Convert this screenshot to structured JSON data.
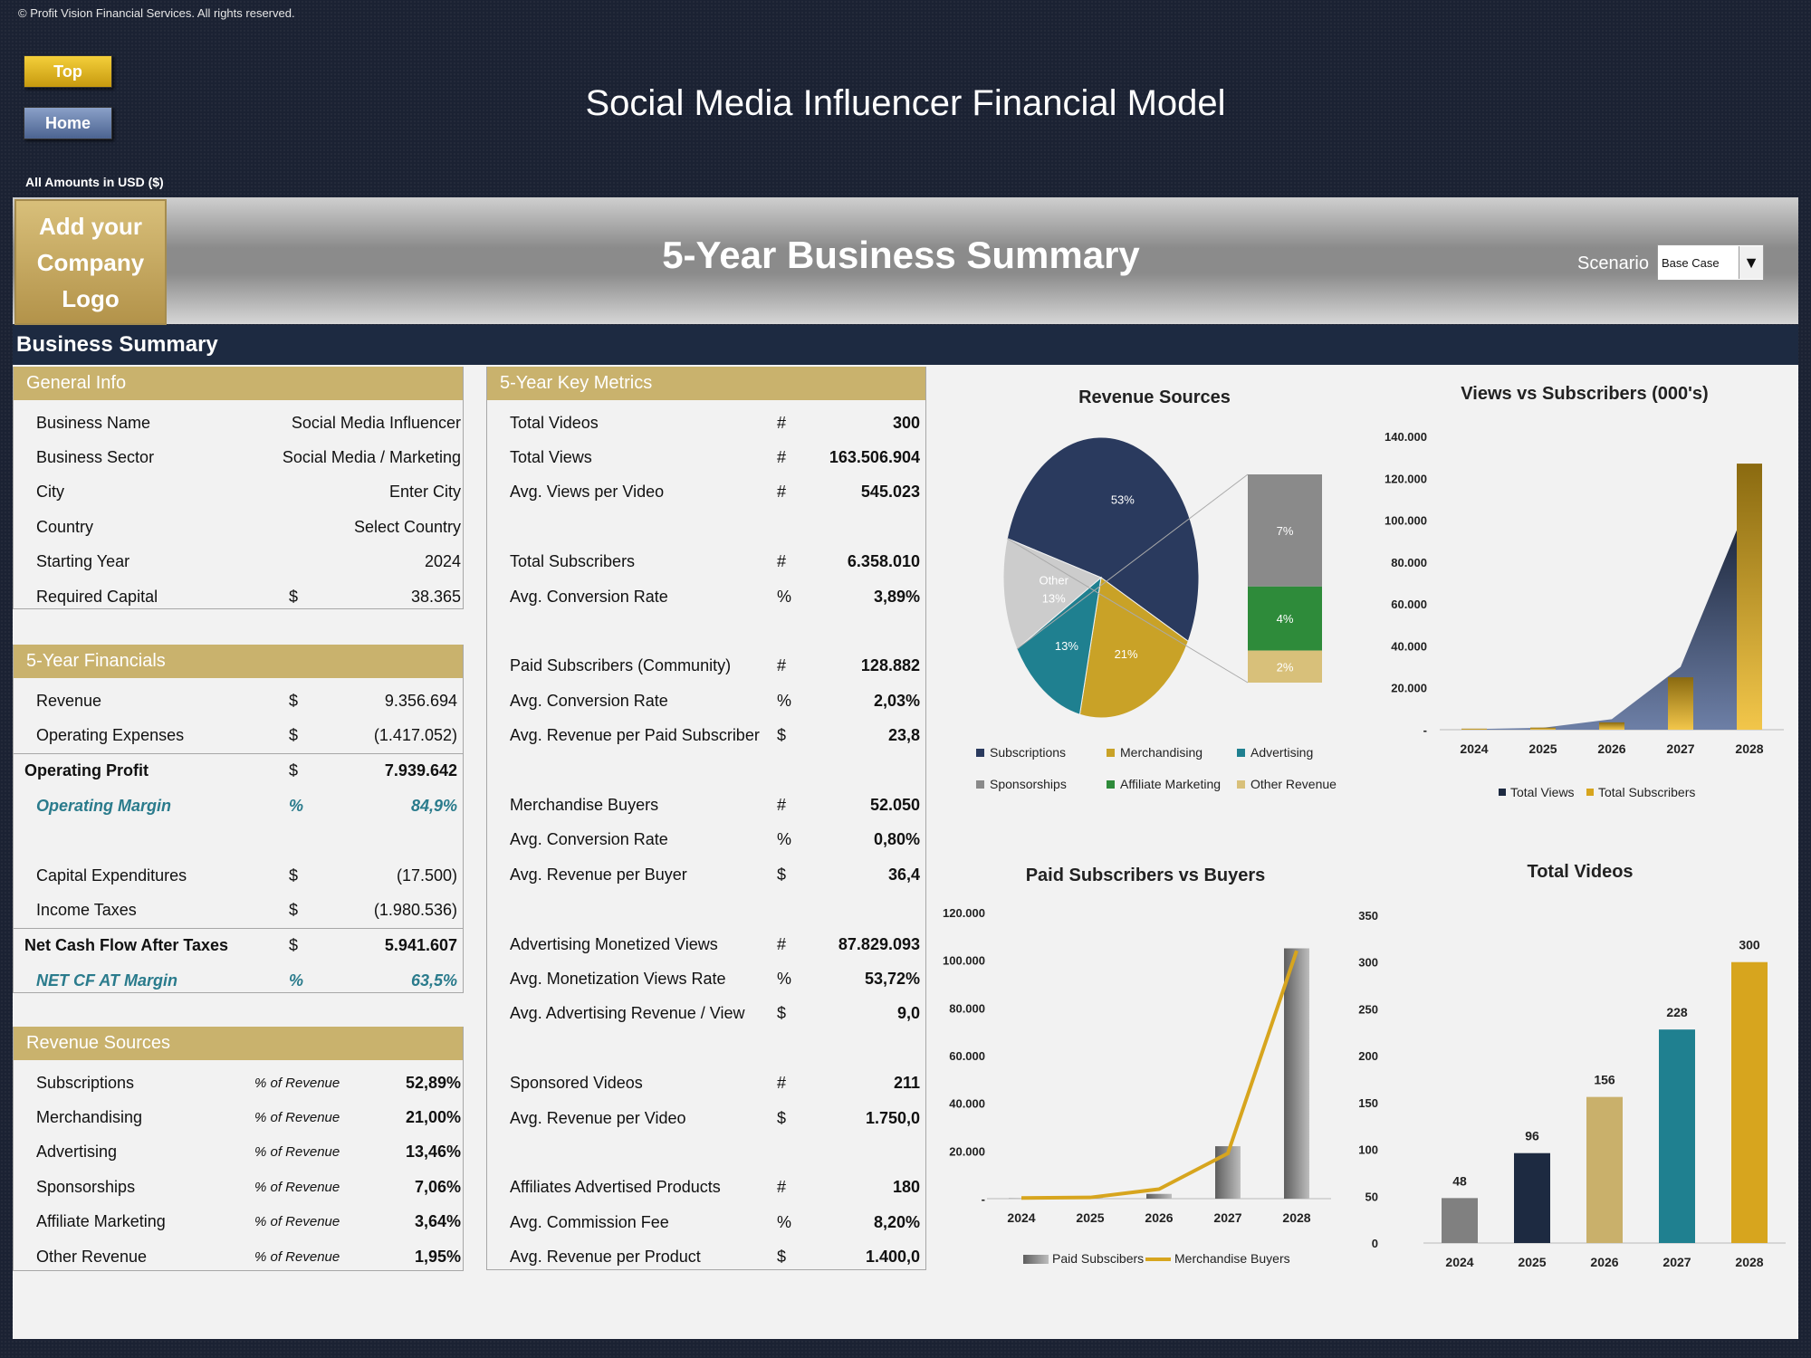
{
  "header": {
    "copyright": "© Profit Vision Financial Services. All rights reserved.",
    "top_button": "Top",
    "home_button": "Home",
    "title": "Social Media Influencer Financial Model",
    "amounts": "All Amounts in  USD ($)"
  },
  "banner": {
    "logo_line1": "Add your",
    "logo_line2": "Company Logo",
    "title": "5-Year Business Summary",
    "scenario_label": "Scenario",
    "scenario_value": "Base Case"
  },
  "section_title": "Business Summary",
  "general_info": {
    "title": "General Info",
    "rows": [
      {
        "label": "Business Name",
        "unit": "",
        "value": "Social Media Influencer"
      },
      {
        "label": "Business Sector",
        "unit": "",
        "value": "Social Media / Marketing"
      },
      {
        "label": "City",
        "unit": "",
        "value": "Enter City"
      },
      {
        "label": "Country",
        "unit": "",
        "value": "Select Country"
      },
      {
        "label": "Starting Year",
        "unit": "",
        "value": "2024"
      },
      {
        "label": "Required Capital",
        "unit": "$",
        "value": "38.365"
      }
    ]
  },
  "financials": {
    "title": "5-Year Financials",
    "rows": [
      {
        "label": "Revenue",
        "unit": "$",
        "value": "9.356.694"
      },
      {
        "label": "Operating Expenses",
        "unit": "$",
        "value": "(1.417.052)"
      },
      {
        "label": "Operating Profit",
        "unit": "$",
        "value": "7.939.642"
      },
      {
        "label": "Operating Margin",
        "unit": "%",
        "value": "84,9%"
      },
      {
        "label": "Capital Expenditures",
        "unit": "$",
        "value": "(17.500)"
      },
      {
        "label": "Income Taxes",
        "unit": "$",
        "value": "(1.980.536)"
      },
      {
        "label": "Net Cash Flow After Taxes",
        "unit": "$",
        "value": "5.941.607"
      },
      {
        "label": "NET CF AT Margin",
        "unit": "%",
        "value": "63,5%"
      }
    ]
  },
  "revenue_sources": {
    "title": "Revenue Sources",
    "rows": [
      {
        "label": "Subscriptions",
        "unit": "% of Revenue",
        "value": "52,89%"
      },
      {
        "label": "Merchandising",
        "unit": "% of Revenue",
        "value": "21,00%"
      },
      {
        "label": "Advertising",
        "unit": "% of Revenue",
        "value": "13,46%"
      },
      {
        "label": "Sponsorships",
        "unit": "% of Revenue",
        "value": "7,06%"
      },
      {
        "label": "Affiliate Marketing",
        "unit": "% of Revenue",
        "value": "3,64%"
      },
      {
        "label": "Other Revenue",
        "unit": "% of Revenue",
        "value": "1,95%"
      }
    ]
  },
  "key_metrics": {
    "title": "5-Year Key Metrics",
    "rows": [
      {
        "label": "Total Videos",
        "unit": "#",
        "value": "300"
      },
      {
        "label": "Total Views",
        "unit": "#",
        "value": "163.506.904"
      },
      {
        "label": "Avg. Views per Video",
        "unit": "#",
        "value": "545.023"
      },
      {
        "label": "Total Subscribers",
        "unit": "#",
        "value": "6.358.010"
      },
      {
        "label": "Avg. Conversion Rate",
        "unit": "%",
        "value": "3,89%"
      },
      {
        "label": "Paid Subscribers (Community)",
        "unit": "#",
        "value": "128.882"
      },
      {
        "label": "Avg. Conversion Rate",
        "unit": "%",
        "value": "2,03%"
      },
      {
        "label": "Avg. Revenue per Paid Subscriber",
        "unit": "$",
        "value": "23,8"
      },
      {
        "label": "Merchandise Buyers",
        "unit": "#",
        "value": "52.050"
      },
      {
        "label": "Avg. Conversion Rate",
        "unit": "%",
        "value": "0,80%"
      },
      {
        "label": "Avg. Revenue per Buyer",
        "unit": "$",
        "value": "36,4"
      },
      {
        "label": "Advertising Monetized Views",
        "unit": "#",
        "value": "87.829.093"
      },
      {
        "label": "Avg. Monetization Views Rate",
        "unit": "%",
        "value": "53,72%"
      },
      {
        "label": "Avg. Advertising Revenue / View",
        "unit": "$",
        "value": "9,0"
      },
      {
        "label": "Sponsored Videos",
        "unit": "#",
        "value": "211"
      },
      {
        "label": "Avg. Revenue per Video",
        "unit": "$",
        "value": "1.750,0"
      },
      {
        "label": "Affiliates Advertised Products",
        "unit": "#",
        "value": "180"
      },
      {
        "label": "Avg. Commission Fee",
        "unit": "%",
        "value": "8,20%"
      },
      {
        "label": "Avg. Revenue per Product",
        "unit": "$",
        "value": "1.400,0"
      }
    ]
  },
  "chart_data": [
    {
      "type": "pie",
      "title": "Revenue Sources",
      "slices": [
        {
          "name": "Subscriptions",
          "value": 53,
          "label": "53%",
          "color": "#2a3a5e"
        },
        {
          "name": "Merchandising",
          "value": 21,
          "label": "21%",
          "color": "#c9a227"
        },
        {
          "name": "Advertising",
          "value": 13,
          "label": "13%",
          "color": "#1f8090"
        },
        {
          "name": "Other",
          "value": 13,
          "label": "13%",
          "color": "#cccccc"
        }
      ],
      "breakdown": [
        {
          "name": "Sponsorships",
          "value": 7,
          "label": "7%",
          "color": "#8a8a8a"
        },
        {
          "name": "Affiliate Marketing",
          "value": 4,
          "label": "4%",
          "color": "#2e8b3a"
        },
        {
          "name": "Other Revenue",
          "value": 2,
          "label": "2%",
          "color": "#d8c07a"
        }
      ],
      "legend": [
        "Subscriptions",
        "Merchandising",
        "Advertising",
        "Sponsorships",
        "Affiliate Marketing",
        "Other Revenue"
      ],
      "legend_colors": [
        "#2a3a5e",
        "#c9a227",
        "#1f8090",
        "#8a8a8a",
        "#2e8b3a",
        "#d8c07a"
      ]
    },
    {
      "type": "area",
      "title": "Views vs Subscribers (000's)",
      "categories": [
        "2024",
        "2025",
        "2026",
        "2027",
        "2028"
      ],
      "series": [
        {
          "name": "Total Views",
          "values": [
            300,
            900,
            5000,
            30000,
            110000
          ],
          "color": "#1d2a41"
        },
        {
          "name": "Total Subscribers",
          "values": [
            500,
            1000,
            3500,
            25000,
            127000
          ],
          "color": "#d7a51e"
        }
      ],
      "ylim": [
        0,
        140000
      ],
      "yticks": [
        "-",
        "20.000",
        "40.000",
        "60.000",
        "80.000",
        "100.000",
        "120.000",
        "140.000"
      ]
    },
    {
      "type": "bar",
      "title": "Paid Subscribers vs Buyers",
      "categories": [
        "2024",
        "2025",
        "2026",
        "2027",
        "2028"
      ],
      "series": [
        {
          "name": "Paid Subscibers",
          "values": [
            100,
            300,
            2000,
            22000,
            105000
          ],
          "color": "#808080"
        },
        {
          "name": "Merchandise Buyers",
          "values": [
            300,
            500,
            4000,
            19000,
            104000
          ],
          "color": "#d7a51e"
        }
      ],
      "ylim": [
        0,
        120000
      ],
      "yticks": [
        "-",
        "20.000",
        "40.000",
        "60.000",
        "80.000",
        "100.000",
        "120.000"
      ]
    },
    {
      "type": "bar",
      "title": "Total Videos",
      "categories": [
        "2024",
        "2025",
        "2026",
        "2027",
        "2028"
      ],
      "values": [
        48,
        96,
        156,
        228,
        300
      ],
      "labels": [
        "48",
        "96",
        "156",
        "228",
        "300"
      ],
      "colors": [
        "#808080",
        "#1d2a41",
        "#c9b06b",
        "#1f8090",
        "#d7a51e"
      ],
      "ylim": [
        0,
        350
      ],
      "yticks": [
        "0",
        "50",
        "100",
        "150",
        "200",
        "250",
        "300",
        "350"
      ]
    }
  ]
}
